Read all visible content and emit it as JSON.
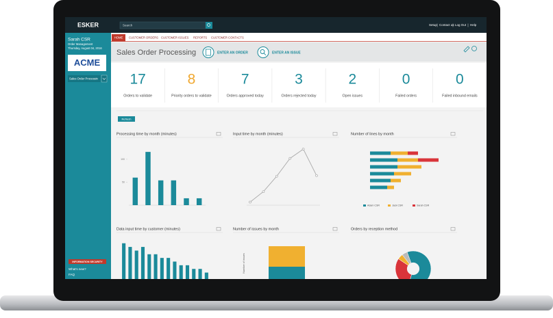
{
  "header": {
    "logo": "ESKER",
    "search_placeholder": "Search",
    "links": [
      "Setup",
      "Contact us",
      "Log Out",
      "Help"
    ]
  },
  "sidebar": {
    "user": "Sarah CSR",
    "role": "Order Management",
    "date": "Thursday, August 04, 2016",
    "company": "ACME",
    "selector": "Sales Order Processin",
    "security": "INFORMATION SECURITY",
    "whats_new": "What's new?",
    "faq": "FAQ"
  },
  "nav": [
    "HOME",
    "CUSTOMER ORDERS",
    "CUSTOMER ISSUES",
    "REPORTS",
    "CUSTOMER CONTACTS"
  ],
  "page": {
    "title": "Sales Order Processing",
    "actions": [
      "ENTER AN ORDER",
      "ENTER AN ISSUE"
    ]
  },
  "kpis": [
    {
      "value": 17,
      "label": "Orders to validate",
      "color": "#1b8a9a"
    },
    {
      "value": 8,
      "label": "Priority orders to validate",
      "color": "#f0a830"
    },
    {
      "value": 7,
      "label": "Orders approved today",
      "color": "#1b8a9a"
    },
    {
      "value": 3,
      "label": "Orders rejected today",
      "color": "#1b8a9a"
    },
    {
      "value": 2,
      "label": "Open issues",
      "color": "#1b8a9a"
    },
    {
      "value": 0,
      "label": "Failed orders",
      "color": "#1b8a9a"
    },
    {
      "value": 0,
      "label": "Failed inbound emails",
      "color": "#1b8a9a"
    }
  ],
  "refresh": "Refresh",
  "charts": [
    {
      "type": "bar",
      "title": "Processing time by month (minutes)",
      "values": [
        60,
        116,
        54,
        54,
        15,
        15
      ],
      "ylim": [
        0,
        140
      ],
      "yticks": [
        50,
        100
      ],
      "color": "#1b8a9a"
    },
    {
      "type": "line",
      "title": "Input time by month (minutes)",
      "values": [
        0.5,
        2.2,
        4.7,
        7.6,
        9.1,
        4.8
      ],
      "ylim": [
        0,
        10
      ],
      "color": "#aaaaaa"
    },
    {
      "type": "hbar-stacked",
      "title": "Number of lines by month",
      "xlim": [
        0,
        100
      ],
      "series": [
        {
          "name": "Adam CSR",
          "color": "#1b8a9a",
          "values": [
            30,
            40,
            40,
            35,
            30,
            25
          ]
        },
        {
          "name": "Jack CSR",
          "color": "#f0b030",
          "values": [
            25,
            30,
            35,
            25,
            15,
            10
          ]
        },
        {
          "name": "Sarah CSR",
          "color": "#d9343a",
          "values": [
            15,
            30,
            0,
            0,
            0,
            0
          ]
        }
      ]
    },
    {
      "type": "bar",
      "title": "Data input time by customer (minutes)",
      "values": [
        12,
        11,
        10,
        11,
        9,
        9,
        8,
        8,
        7,
        6,
        6,
        5,
        5,
        4
      ],
      "ylim": [
        0,
        14
      ],
      "color": "#1b8a9a"
    },
    {
      "type": "bar-stacked",
      "title": "Number of issues by month",
      "ylabel": "Number of issues",
      "values": [
        1,
        1
      ],
      "colors": [
        "#1b8a9a",
        "#f0b030"
      ],
      "ylim": [
        0,
        2.5
      ]
    },
    {
      "type": "pie",
      "title": "Orders by reception method",
      "values": [
        60,
        30,
        5,
        5
      ],
      "colors": [
        "#1b8a9a",
        "#d9343a",
        "#f0b030",
        "#bbbbbb"
      ]
    }
  ]
}
